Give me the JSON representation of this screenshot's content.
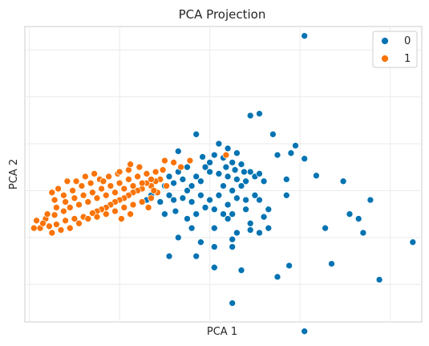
{
  "chart_data": {
    "type": "scatter",
    "title": "PCA Projection",
    "xlabel": "PCA 1",
    "ylabel": "PCA 2",
    "xlim": [
      -1.05,
      3.35
    ],
    "ylim": [
      -1.4,
      1.75
    ],
    "grid": true,
    "ticks_shown": false,
    "legend": {
      "position": "top-right",
      "entries": [
        "0",
        "1"
      ]
    },
    "colors": {
      "0": "#0173b2",
      "1": "#f97306"
    },
    "series": [
      {
        "name": "0",
        "color": "#0173b2",
        "points": [
          [
            2.05,
            1.65
          ],
          [
            1.55,
            0.82
          ],
          [
            1.45,
            0.8
          ],
          [
            1.7,
            0.6
          ],
          [
            1.95,
            0.48
          ],
          [
            1.9,
            0.4
          ],
          [
            2.05,
            0.34
          ],
          [
            0.92,
            0.36
          ],
          [
            0.85,
            0.6
          ],
          [
            1.75,
            0.38
          ],
          [
            2.18,
            0.16
          ],
          [
            0.65,
            0.42
          ],
          [
            1.1,
            0.5
          ],
          [
            1.2,
            0.45
          ],
          [
            1.05,
            0.38
          ],
          [
            1.15,
            0.35
          ],
          [
            1.25,
            0.3
          ],
          [
            1.35,
            0.28
          ],
          [
            1.3,
            0.4
          ],
          [
            0.95,
            0.25
          ],
          [
            1.0,
            0.2
          ],
          [
            1.1,
            0.18
          ],
          [
            1.2,
            0.15
          ],
          [
            1.3,
            0.12
          ],
          [
            1.4,
            0.1
          ],
          [
            1.5,
            0.15
          ],
          [
            1.45,
            0.2
          ],
          [
            1.55,
            0.18
          ],
          [
            1.6,
            0.1
          ],
          [
            0.9,
            0.1
          ],
          [
            0.85,
            0.15
          ],
          [
            0.8,
            0.05
          ],
          [
            0.75,
            0.0
          ],
          [
            0.7,
            0.12
          ],
          [
            0.6,
            0.08
          ],
          [
            0.55,
            0.15
          ],
          [
            0.5,
            0.05
          ],
          [
            0.55,
            -0.05
          ],
          [
            0.6,
            -0.1
          ],
          [
            0.7,
            -0.08
          ],
          [
            0.8,
            -0.12
          ],
          [
            0.9,
            -0.05
          ],
          [
            1.0,
            -0.1
          ],
          [
            1.1,
            -0.05
          ],
          [
            1.2,
            -0.15
          ],
          [
            1.3,
            -0.08
          ],
          [
            1.4,
            -0.1
          ],
          [
            1.5,
            -0.05
          ],
          [
            1.15,
            0.05
          ],
          [
            1.25,
            0.0
          ],
          [
            1.35,
            0.05
          ],
          [
            0.45,
            -0.12
          ],
          [
            0.4,
            -0.02
          ],
          [
            0.35,
            -0.05
          ],
          [
            0.3,
            -0.1
          ],
          [
            0.65,
            0.2
          ],
          [
            0.75,
            0.25
          ],
          [
            1.0,
            0.3
          ],
          [
            1.18,
            0.25
          ],
          [
            1.28,
            0.22
          ],
          [
            1.38,
            0.2
          ],
          [
            1.05,
            -0.2
          ],
          [
            0.95,
            -0.18
          ],
          [
            0.85,
            -0.25
          ],
          [
            1.15,
            -0.25
          ],
          [
            1.25,
            -0.25
          ],
          [
            1.4,
            -0.2
          ],
          [
            1.55,
            -0.1
          ],
          [
            1.65,
            -0.2
          ],
          [
            0.62,
            -0.22
          ],
          [
            0.5,
            -0.25
          ],
          [
            1.05,
            -0.4
          ],
          [
            0.75,
            -0.3
          ],
          [
            1.2,
            -0.3
          ],
          [
            1.85,
            0.12
          ],
          [
            1.85,
            -0.05
          ],
          [
            1.45,
            -0.35
          ],
          [
            1.6,
            -0.28
          ],
          [
            0.8,
            -0.4
          ],
          [
            1.3,
            -0.45
          ],
          [
            1.25,
            -0.52
          ],
          [
            0.9,
            -0.55
          ],
          [
            0.65,
            -0.5
          ],
          [
            1.05,
            -0.6
          ],
          [
            0.55,
            -0.7
          ],
          [
            0.85,
            -0.7
          ],
          [
            1.25,
            -0.6
          ],
          [
            1.45,
            -0.42
          ],
          [
            1.55,
            -0.45
          ],
          [
            2.48,
            0.1
          ],
          [
            2.55,
            -0.25
          ],
          [
            2.65,
            -0.3
          ],
          [
            2.28,
            -0.4
          ],
          [
            2.7,
            -0.45
          ],
          [
            2.78,
            -0.1
          ],
          [
            2.35,
            -0.78
          ],
          [
            1.05,
            -0.82
          ],
          [
            1.35,
            -0.85
          ],
          [
            1.88,
            -0.8
          ],
          [
            1.25,
            -1.2
          ],
          [
            2.88,
            -0.95
          ],
          [
            3.25,
            -0.55
          ],
          [
            1.75,
            -0.92
          ],
          [
            2.05,
            -1.5
          ],
          [
            1.65,
            -0.4
          ]
        ]
      },
      {
        "name": "1",
        "color": "#f97306",
        "points": [
          [
            0.45,
            0.12
          ],
          [
            0.4,
            0.1
          ],
          [
            0.35,
            0.05
          ],
          [
            0.3,
            0.08
          ],
          [
            0.25,
            0.02
          ],
          [
            0.2,
            0.0
          ],
          [
            0.15,
            -0.02
          ],
          [
            0.1,
            -0.05
          ],
          [
            0.05,
            -0.08
          ],
          [
            0.0,
            -0.1
          ],
          [
            -0.05,
            -0.12
          ],
          [
            -0.1,
            -0.15
          ],
          [
            -0.15,
            -0.18
          ],
          [
            -0.2,
            -0.2
          ],
          [
            -0.25,
            -0.22
          ],
          [
            -0.3,
            -0.24
          ],
          [
            -0.4,
            -0.28
          ],
          [
            -0.5,
            -0.3
          ],
          [
            -0.6,
            -0.32
          ],
          [
            -0.7,
            -0.36
          ],
          [
            -0.78,
            -0.38
          ],
          [
            -0.88,
            -0.4
          ],
          [
            -0.95,
            -0.4
          ],
          [
            -0.82,
            -0.3
          ],
          [
            -0.72,
            -0.26
          ],
          [
            -0.62,
            -0.22
          ],
          [
            -0.55,
            -0.18
          ],
          [
            -0.45,
            -0.15
          ],
          [
            -0.35,
            -0.12
          ],
          [
            -0.25,
            -0.08
          ],
          [
            -0.15,
            -0.05
          ],
          [
            -0.05,
            -0.02
          ],
          [
            0.05,
            0.02
          ],
          [
            0.15,
            0.05
          ],
          [
            0.25,
            0.08
          ],
          [
            0.35,
            0.12
          ],
          [
            0.3,
            0.18
          ],
          [
            0.2,
            0.15
          ],
          [
            0.1,
            0.12
          ],
          [
            0.0,
            0.08
          ],
          [
            -0.1,
            0.05
          ],
          [
            -0.2,
            0.02
          ],
          [
            -0.3,
            -0.02
          ],
          [
            -0.4,
            -0.05
          ],
          [
            -0.5,
            -0.08
          ],
          [
            -0.6,
            -0.12
          ],
          [
            -0.7,
            -0.18
          ],
          [
            -0.8,
            -0.25
          ],
          [
            -0.35,
            -0.3
          ],
          [
            -0.25,
            -0.28
          ],
          [
            -0.15,
            -0.25
          ],
          [
            -0.05,
            -0.22
          ],
          [
            0.05,
            -0.18
          ],
          [
            0.15,
            -0.15
          ],
          [
            0.25,
            -0.12
          ],
          [
            0.35,
            -0.08
          ],
          [
            0.42,
            -0.02
          ],
          [
            0.52,
            0.05
          ],
          [
            0.6,
            0.3
          ],
          [
            0.68,
            0.25
          ],
          [
            0.78,
            0.32
          ],
          [
            0.48,
            0.22
          ],
          [
            0.4,
            0.2
          ],
          [
            0.22,
            0.25
          ],
          [
            0.1,
            0.22
          ],
          [
            -0.02,
            0.18
          ],
          [
            -0.12,
            0.15
          ],
          [
            -0.22,
            0.12
          ],
          [
            -0.32,
            0.08
          ],
          [
            -0.42,
            0.05
          ],
          [
            -0.52,
            0.0
          ],
          [
            -0.62,
            -0.05
          ],
          [
            -0.72,
            -0.1
          ],
          [
            -0.45,
            -0.35
          ],
          [
            -0.55,
            -0.4
          ],
          [
            -0.65,
            -0.42
          ],
          [
            -0.75,
            -0.45
          ],
          [
            -0.85,
            -0.35
          ],
          [
            -0.92,
            -0.32
          ],
          [
            0.12,
            -0.25
          ],
          [
            0.02,
            -0.3
          ],
          [
            1.18,
            0.38
          ],
          [
            0.5,
            0.32
          ],
          [
            0.12,
            0.28
          ],
          [
            0.0,
            0.2
          ],
          [
            -0.18,
            0.1
          ],
          [
            -0.28,
            0.18
          ],
          [
            -0.38,
            0.15
          ],
          [
            -0.48,
            0.1
          ],
          [
            -0.58,
            0.1
          ],
          [
            -0.68,
            0.02
          ],
          [
            -0.75,
            -0.02
          ],
          [
            0.32,
            -0.18
          ],
          [
            0.38,
            0.0
          ]
        ]
      }
    ]
  }
}
